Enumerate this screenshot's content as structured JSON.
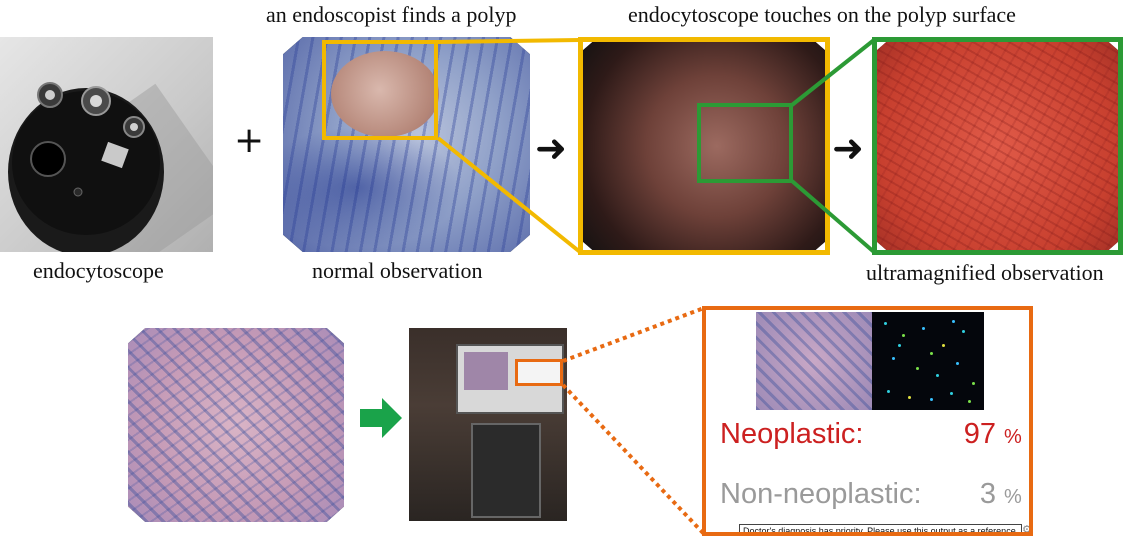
{
  "captions": {
    "finds_polyp": "an endoscopist finds a polyp",
    "touches_surface": "endocytoscope touches on the polyp surface",
    "endocytoscope": "endocytoscope",
    "normal_observation": "normal observation",
    "ultramagnified_observation": "ultramagnified observation"
  },
  "symbols": {
    "plus": "+",
    "arrow": "➜"
  },
  "result": {
    "neoplastic_label": "Neoplastic:",
    "neoplastic_value": "97",
    "non_neoplastic_label": "Non-neoplastic:",
    "non_neoplastic_value": "3",
    "percent": "%",
    "disclaimer": "Doctor's diagnosis has priority. Please use this output as a reference."
  },
  "colors": {
    "yellow_frame": "#f2b900",
    "green_frame": "#2c9a35",
    "orange_frame": "#e86a12",
    "neoplastic_red": "#cc2020",
    "non_neoplastic_gray": "#9a9a9a",
    "green_arrow": "#1aa34a"
  },
  "icons": {
    "plus": "plus-sign",
    "arrow": "right-arrow",
    "green_arrow": "green-block-arrow",
    "settings": "gear-icon"
  }
}
